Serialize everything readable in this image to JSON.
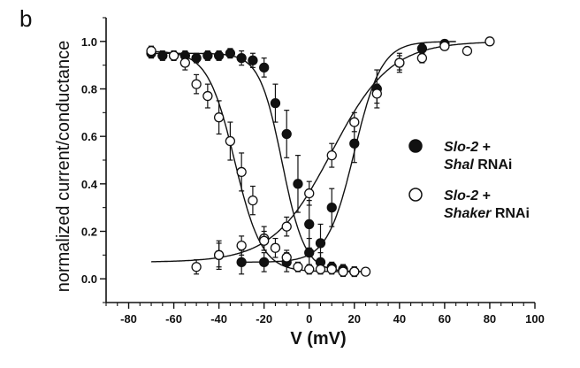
{
  "panel_label": "b",
  "chart_data": {
    "type": "scatter",
    "xlabel": "V (mV)",
    "ylabel": "normalized current/conductance",
    "xlim": [
      -90,
      100
    ],
    "ylim": [
      -0.1,
      1.1
    ],
    "x_ticks": [
      -80,
      -60,
      -40,
      -20,
      0,
      20,
      40,
      60,
      80,
      100
    ],
    "y_ticks": [
      0.0,
      0.2,
      0.4,
      0.6,
      0.8,
      1.0
    ],
    "x_tick_labels": [
      "-80",
      "-60",
      "-40",
      "-20",
      "0",
      "20",
      "40",
      "60",
      "80",
      "100"
    ],
    "y_tick_labels": [
      "0.0",
      "0.2",
      "0.4",
      "0.6",
      "0.8",
      "1.0"
    ],
    "legend_position": "right",
    "grid": false,
    "series": [
      {
        "id": "shal-inact",
        "legend": "shal",
        "marker": "filled",
        "x": [
          -70,
          -65,
          -60,
          -55,
          -50,
          -45,
          -40,
          -35,
          -30,
          -25,
          -20,
          -15,
          -10,
          -5,
          0,
          5,
          10,
          15,
          20
        ],
        "y": [
          0.95,
          0.94,
          0.94,
          0.94,
          0.93,
          0.94,
          0.94,
          0.95,
          0.93,
          0.92,
          0.89,
          0.74,
          0.61,
          0.4,
          0.23,
          0.07,
          0.05,
          0.04,
          0.03
        ],
        "err": [
          0.02,
          0.02,
          0.02,
          0.02,
          0.02,
          0.02,
          0.02,
          0.02,
          0.03,
          0.03,
          0.04,
          0.08,
          0.1,
          0.12,
          0.1,
          0.04,
          0.02,
          0.02,
          0.02
        ]
      },
      {
        "id": "shal-act",
        "legend": "shal",
        "marker": "filled",
        "x": [
          -40,
          -30,
          -20,
          -10,
          0,
          5,
          10,
          20,
          30,
          40,
          50,
          60
        ],
        "y": [
          0.1,
          0.07,
          0.07,
          0.07,
          0.11,
          0.15,
          0.3,
          0.57,
          0.8,
          0.91,
          0.97,
          0.99
        ],
        "err": [
          0.05,
          0.05,
          0.04,
          0.04,
          0.06,
          0.08,
          0.08,
          0.08,
          0.08,
          0.04,
          0.02,
          0.01
        ]
      },
      {
        "id": "shaker-inact",
        "legend": "shaker",
        "marker": "open",
        "x": [
          -70,
          -60,
          -55,
          -50,
          -45,
          -40,
          -35,
          -30,
          -25,
          -20,
          -15,
          -10,
          -5,
          0,
          5,
          10,
          15,
          20,
          25
        ],
        "y": [
          0.96,
          0.94,
          0.91,
          0.82,
          0.77,
          0.68,
          0.58,
          0.45,
          0.33,
          0.17,
          0.13,
          0.09,
          0.05,
          0.04,
          0.04,
          0.04,
          0.03,
          0.03,
          0.03
        ],
        "err": [
          0.02,
          0.02,
          0.03,
          0.04,
          0.05,
          0.07,
          0.08,
          0.08,
          0.06,
          0.05,
          0.04,
          0.03,
          0.02,
          0.02,
          0.02,
          0.02,
          0.02,
          0.02,
          0.01
        ]
      },
      {
        "id": "shaker-act",
        "legend": "shaker",
        "marker": "open",
        "x": [
          -50,
          -40,
          -30,
          -20,
          -10,
          0,
          10,
          20,
          30,
          40,
          50,
          60,
          70,
          80
        ],
        "y": [
          0.05,
          0.1,
          0.14,
          0.16,
          0.22,
          0.36,
          0.52,
          0.66,
          0.78,
          0.91,
          0.93,
          0.98,
          0.96,
          1.0
        ],
        "err": [
          0.03,
          0.06,
          0.04,
          0.04,
          0.04,
          0.05,
          0.05,
          0.04,
          0.04,
          0.03,
          0.02,
          0.01,
          0.01,
          0.01
        ]
      }
    ],
    "fit_curves": [
      {
        "id": "fit-shal-inact",
        "kind": "decreasing",
        "v_half": -12,
        "slope": 5,
        "top": 0.95,
        "bottom": 0.03,
        "x_range": [
          -70,
          25
        ]
      },
      {
        "id": "fit-shal-act",
        "kind": "increasing",
        "v_half": 20,
        "slope": 6,
        "top": 1.0,
        "bottom": 0.07,
        "x_range": [
          -30,
          65
        ]
      },
      {
        "id": "fit-shaker-inact",
        "kind": "decreasing",
        "v_half": -33,
        "slope": 6,
        "top": 0.96,
        "bottom": 0.03,
        "x_range": [
          -70,
          25
        ]
      },
      {
        "id": "fit-shaker-act",
        "kind": "increasing",
        "v_half": 10,
        "slope": 13,
        "top": 1.0,
        "bottom": 0.07,
        "x_range": [
          -70,
          80
        ]
      }
    ],
    "legend": [
      {
        "key": "shal",
        "marker": "filled",
        "line1_italic": "Slo-2",
        "line1_plain": " +",
        "line2_italic": "Shal",
        "line2_plain": " RNAi"
      },
      {
        "key": "shaker",
        "marker": "open",
        "line1_italic": "Slo-2",
        "line1_plain": " +",
        "line2_italic": "Shaker",
        "line2_plain": " RNAi"
      }
    ]
  }
}
